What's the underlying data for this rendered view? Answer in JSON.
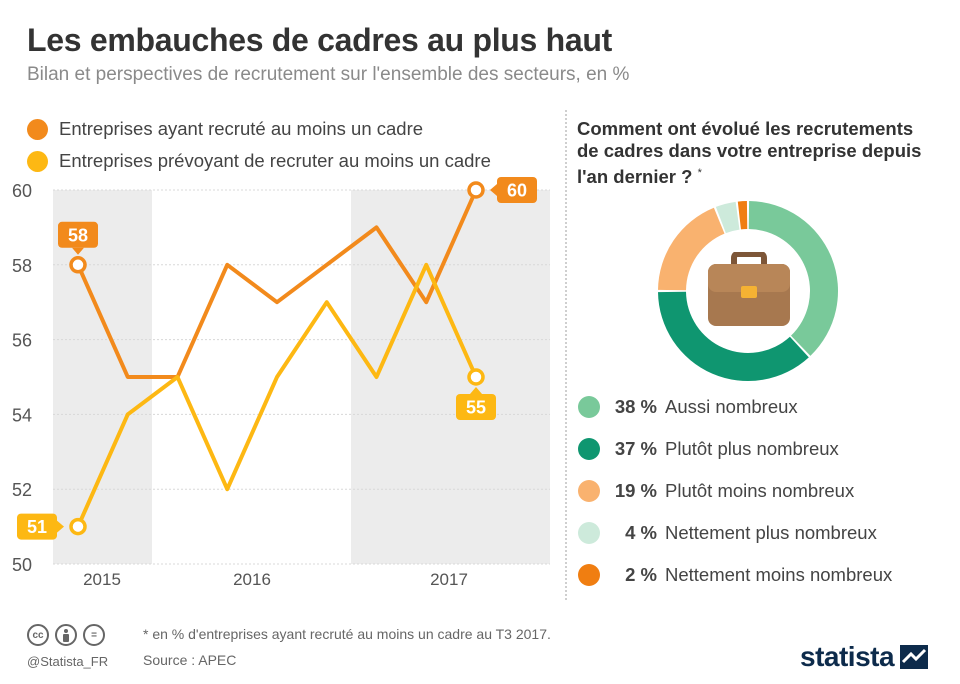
{
  "title": "Les embauches de cadres au plus haut",
  "subtitle": "Bilan et perspectives de recrutement sur l'ensemble des secteurs, en %",
  "chart_data": [
    {
      "type": "line",
      "x_ticks": [
        "2015",
        "2016",
        "2017"
      ],
      "ylim": [
        50,
        60
      ],
      "yticks": [
        50,
        52,
        54,
        56,
        58,
        60
      ],
      "grid": true,
      "legend_position": "top-left",
      "series": [
        {
          "name": "Entreprises ayant recruté au moins un cadre",
          "color": "#f28a1c",
          "values": [
            58,
            55,
            55,
            58,
            57,
            58,
            59,
            57,
            60
          ],
          "labels": [
            {
              "index": 0,
              "text": "58"
            },
            {
              "index": 8,
              "text": "60"
            }
          ]
        },
        {
          "name": "Entreprises prévoyant de recruter au moins un cadre",
          "color": "#fdb813",
          "values": [
            51,
            54,
            55,
            52,
            55,
            57,
            55,
            58,
            55
          ],
          "labels": [
            {
              "index": 0,
              "text": "51"
            },
            {
              "index": 8,
              "text": "55"
            }
          ]
        }
      ]
    },
    {
      "type": "pie",
      "title": "Comment ont évolué les recrutements de cadres dans votre entreprise depuis l'an dernier ?",
      "title_note": "*",
      "slices": [
        {
          "pct": "38 %",
          "value": 38,
          "label": "Aussi nombreux",
          "color": "#79c99a"
        },
        {
          "pct": "37 %",
          "value": 37,
          "label": "Plutôt plus nombreux",
          "color": "#0f9670"
        },
        {
          "pct": "19 %",
          "value": 19,
          "label": "Plutôt moins nombreux",
          "color": "#f9b26f"
        },
        {
          "pct": "4 %",
          "value": 4,
          "label": "Nettement plus nombreux",
          "color": "#cdeadb"
        },
        {
          "pct": "2 %",
          "value": 2,
          "label": "Nettement moins nombreux",
          "color": "#f07e11"
        }
      ]
    }
  ],
  "footer": {
    "handle": "@Statista_FR",
    "footnote": "* en % d'entreprises ayant recruté au moins un cadre au T3 2017.",
    "source": "Source : APEC",
    "logo": "statista",
    "cc_icons": [
      "cc",
      "by",
      "nd"
    ]
  },
  "icons": [
    "briefcase-icon",
    "creative-commons-icon",
    "attribution-icon",
    "no-derivatives-icon",
    "statista-logo-icon"
  ]
}
